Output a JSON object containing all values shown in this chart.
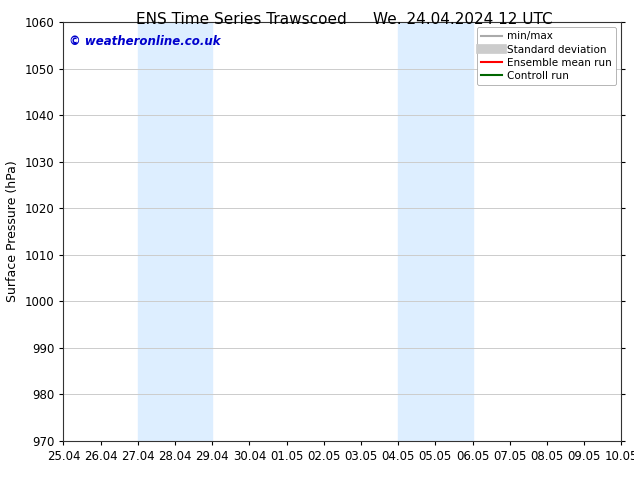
{
  "title_left": "ENS Time Series Trawscoed",
  "title_right": "We. 24.04.2024 12 UTC",
  "ylabel": "Surface Pressure (hPa)",
  "ylim": [
    970,
    1060
  ],
  "yticks": [
    970,
    980,
    990,
    1000,
    1010,
    1020,
    1030,
    1040,
    1050,
    1060
  ],
  "xtick_labels": [
    "25.04",
    "26.04",
    "27.04",
    "28.04",
    "29.04",
    "30.04",
    "01.05",
    "02.05",
    "03.05",
    "04.05",
    "05.05",
    "06.05",
    "07.05",
    "08.05",
    "09.05",
    "10.05"
  ],
  "x_values": [
    0,
    1,
    2,
    3,
    4,
    5,
    6,
    7,
    8,
    9,
    10,
    11,
    12,
    13,
    14,
    15
  ],
  "shaded_bands": [
    {
      "xmin": 2,
      "xmax": 4,
      "color": "#ddeeff"
    },
    {
      "xmin": 9,
      "xmax": 11,
      "color": "#ddeeff"
    }
  ],
  "watermark_text": "© weatheronline.co.uk",
  "watermark_color": "#0000cc",
  "legend_items": [
    {
      "label": "min/max",
      "color": "#aaaaaa",
      "lw": 1.5,
      "style": "solid"
    },
    {
      "label": "Standard deviation",
      "color": "#cccccc",
      "lw": 7,
      "style": "solid"
    },
    {
      "label": "Ensemble mean run",
      "color": "#ff0000",
      "lw": 1.5,
      "style": "solid"
    },
    {
      "label": "Controll run",
      "color": "#006600",
      "lw": 1.5,
      "style": "solid"
    }
  ],
  "background_color": "#ffffff",
  "grid_color": "#cccccc",
  "title_fontsize": 11,
  "axis_fontsize": 9,
  "tick_fontsize": 8.5,
  "legend_fontsize": 7.5
}
